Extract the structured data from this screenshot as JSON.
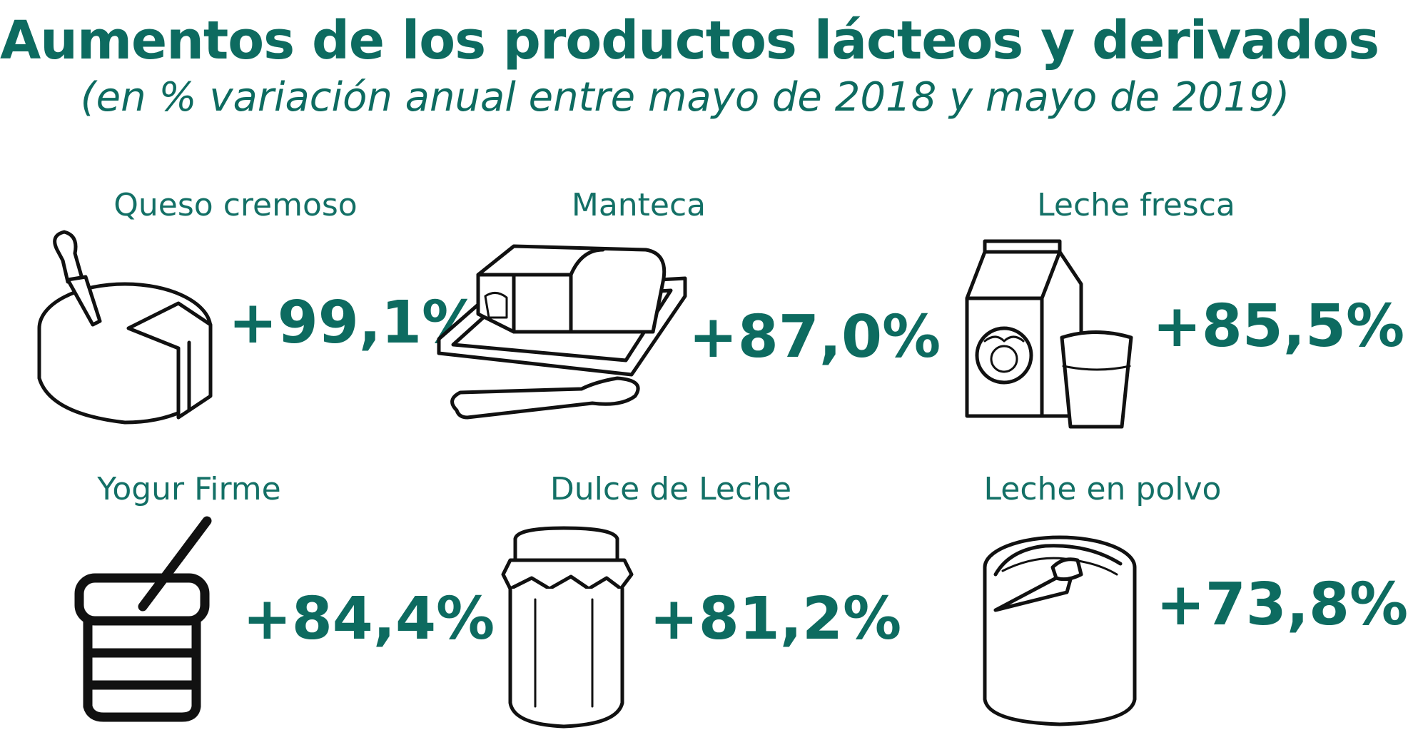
{
  "chart_data": {
    "type": "table",
    "title": "Aumentos de los productos lácteos y derivados",
    "subtitle": "(en % variación anual entre mayo de 2018 y mayo de 2019)",
    "unit": "%",
    "items": [
      {
        "label": "Queso cremoso",
        "value": 99.1,
        "display": "+99,1%",
        "icon": "cheese-wheel-icon"
      },
      {
        "label": "Manteca",
        "value": 87.0,
        "display": "+87,0%",
        "icon": "butter-dish-icon"
      },
      {
        "label": "Leche fresca",
        "value": 85.5,
        "display": "+85,5%",
        "icon": "milk-carton-icon"
      },
      {
        "label": "Yogur Firme",
        "value": 84.4,
        "display": "+84,4%",
        "icon": "yogurt-cup-icon"
      },
      {
        "label": "Dulce de Leche",
        "value": 81.2,
        "display": "+81,2%",
        "icon": "jar-icon"
      },
      {
        "label": "Leche en polvo",
        "value": 73.8,
        "display": "+73,8%",
        "icon": "powder-milk-can-icon"
      }
    ]
  },
  "colors": {
    "accent": "#0d6b60",
    "label": "#137066",
    "line": "#111111"
  }
}
